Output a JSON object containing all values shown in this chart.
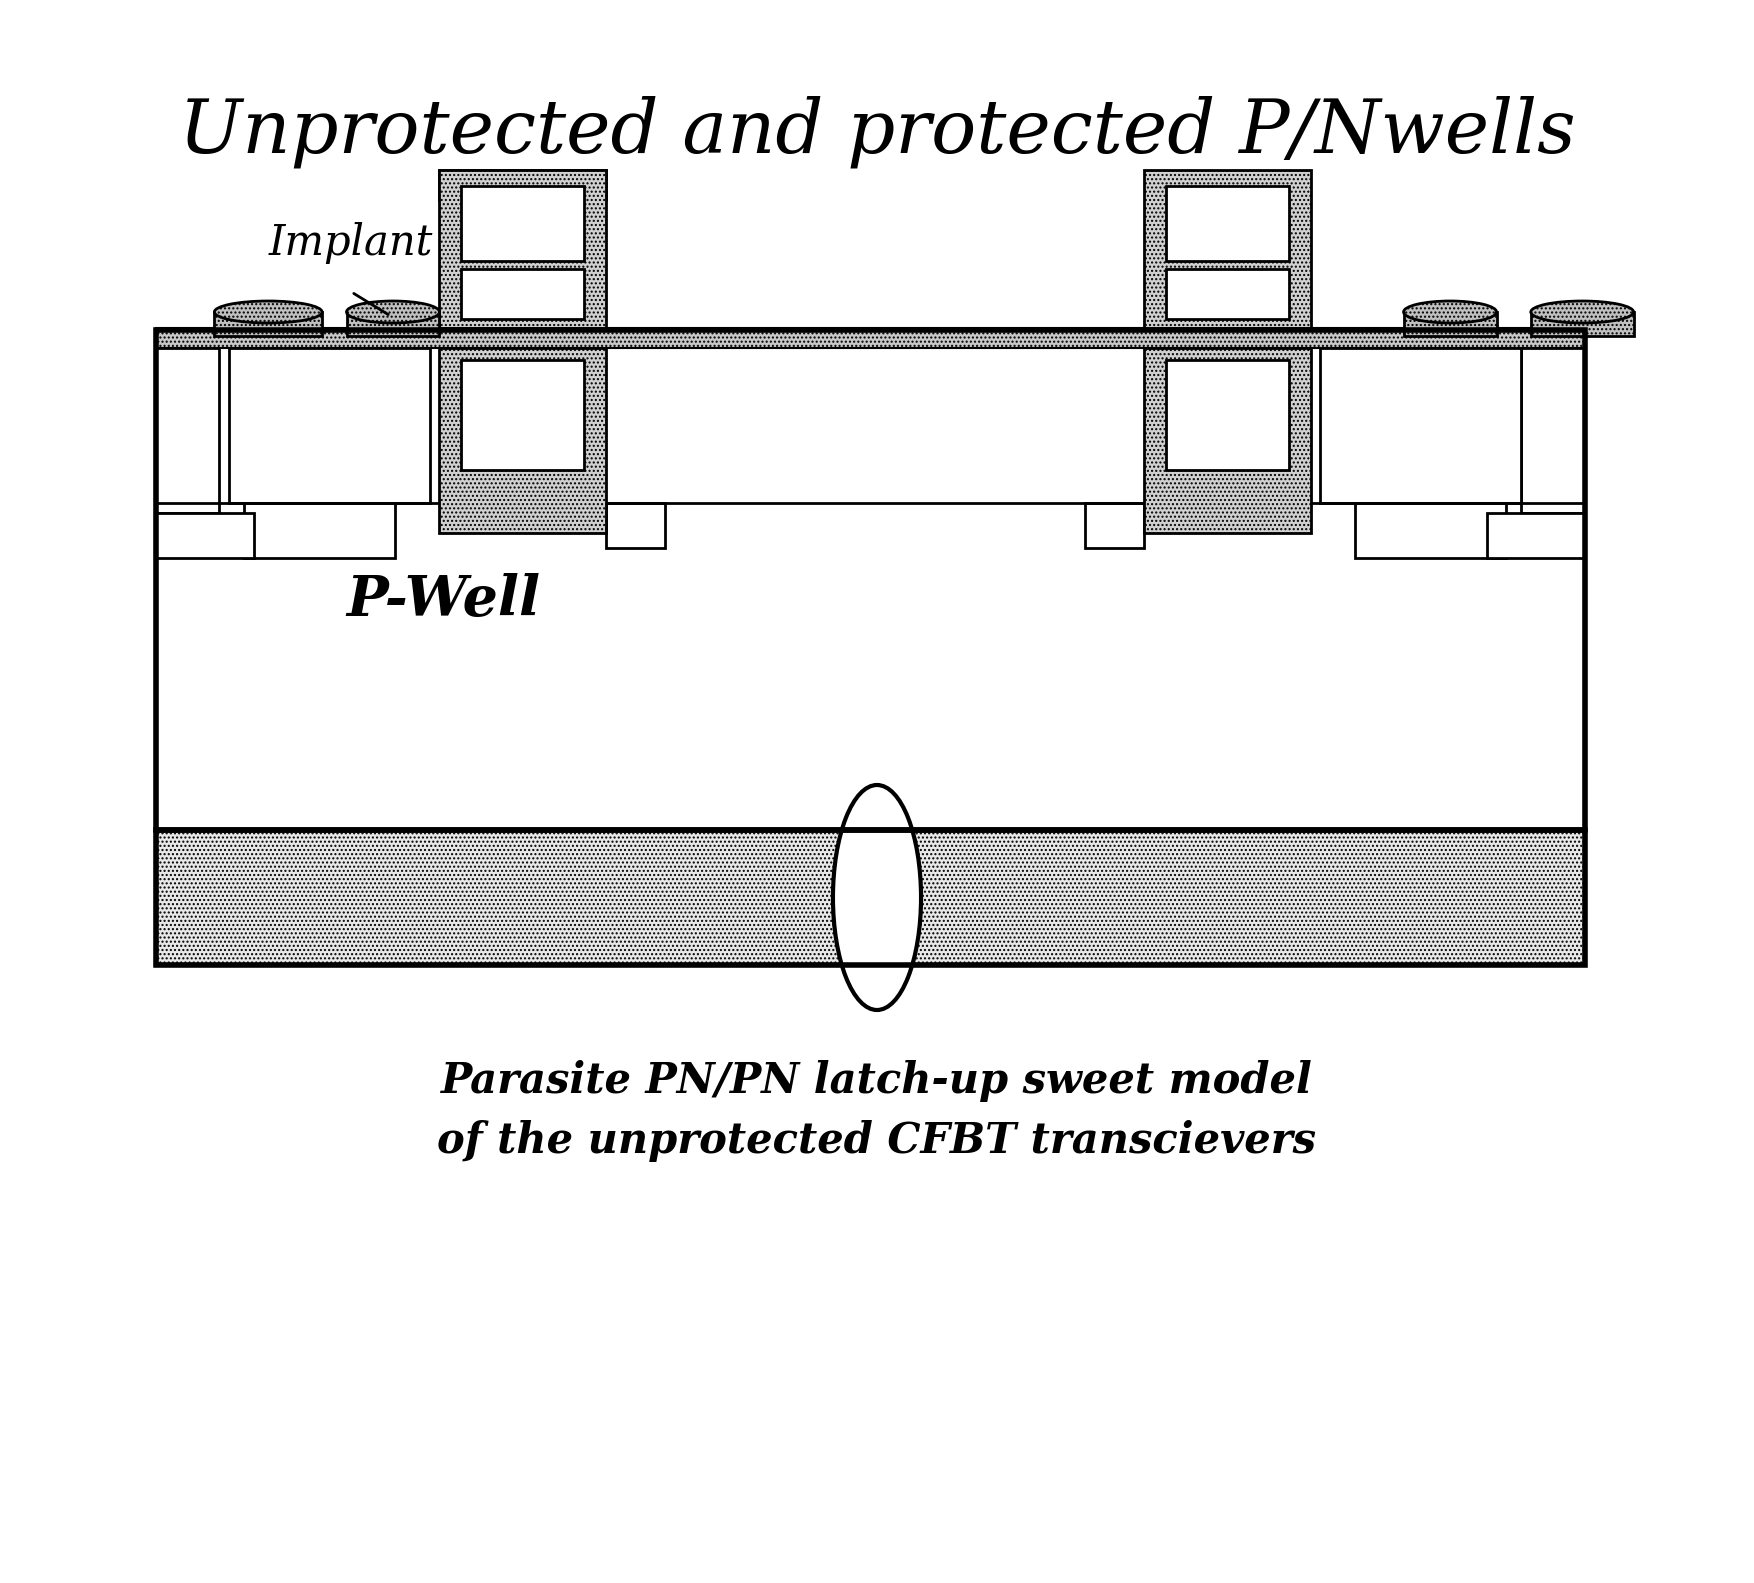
{
  "title": "Unprotected and protected P/Nwells",
  "subtitle_line1": "Parasite PN/PN latch-up sweet model",
  "subtitle_line2": "of the unprotected CFBT transcievers",
  "label_implant": "Implant",
  "label_pwell": "P-Well",
  "bg_color": "#ffffff",
  "line_color": "#000000",
  "title_fontsize": 54,
  "subtitle_fontsize": 30,
  "implant_fontsize": 30,
  "pwell_fontsize": 40
}
